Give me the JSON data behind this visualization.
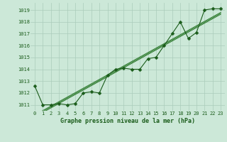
{
  "hours": [
    0,
    1,
    2,
    3,
    4,
    5,
    6,
    7,
    8,
    9,
    10,
    11,
    12,
    13,
    14,
    15,
    16,
    17,
    18,
    19,
    20,
    21,
    22,
    23
  ],
  "pressure": [
    1012.6,
    1011.0,
    1011.0,
    1011.1,
    1011.0,
    1011.1,
    1012.0,
    1012.1,
    1012.0,
    1013.5,
    1014.0,
    1014.1,
    1014.0,
    1014.0,
    1014.9,
    1015.0,
    1016.0,
    1017.0,
    1018.0,
    1016.6,
    1017.1,
    1019.0,
    1019.1,
    1019.1
  ],
  "line_color": "#1a5c1a",
  "marker_color": "#1a5c1a",
  "bg_color": "#cce8d8",
  "grid_color": "#aaccbb",
  "regression_color": "#2d7a2d",
  "ylabel_values": [
    1011,
    1012,
    1013,
    1014,
    1015,
    1016,
    1017,
    1018,
    1019
  ],
  "ylim": [
    1010.5,
    1019.6
  ],
  "xlim": [
    -0.5,
    23.5
  ],
  "xlabel": "Graphe pression niveau de la mer (hPa)",
  "tick_color": "#1a5c1a",
  "marker_size": 2.5,
  "tick_fontsize": 5.0,
  "xlabel_fontsize": 6.0
}
